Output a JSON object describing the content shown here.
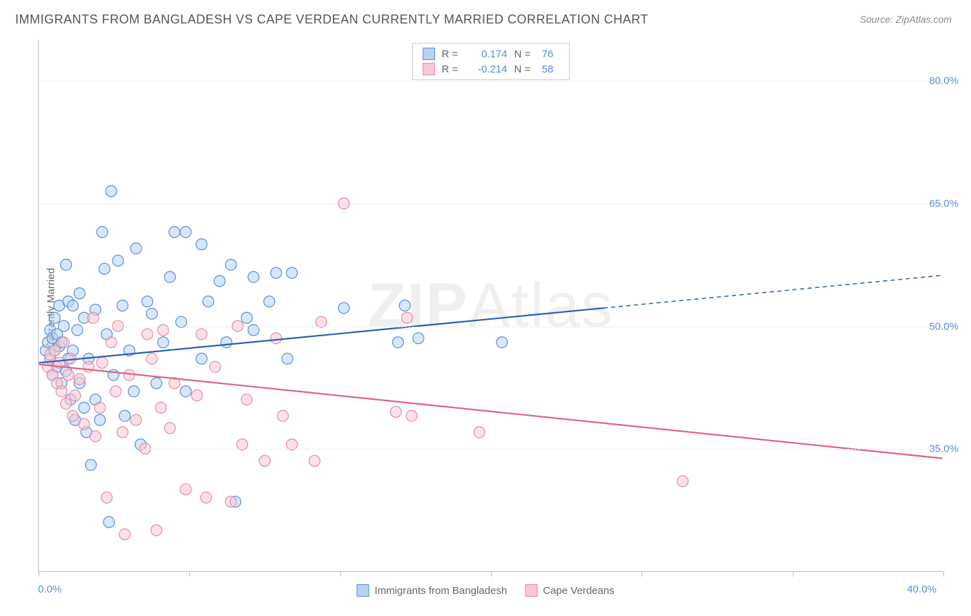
{
  "title": "IMMIGRANTS FROM BANGLADESH VS CAPE VERDEAN CURRENTLY MARRIED CORRELATION CHART",
  "source": "Source: ZipAtlas.com",
  "watermark": {
    "bold": "ZIP",
    "light": "Atlas"
  },
  "chart": {
    "type": "scatter+regression",
    "background_color": "#ffffff",
    "grid_color": "#e5e5e5",
    "axis_color": "#bbbbbb",
    "xlim": [
      0,
      40
    ],
    "ylim": [
      20,
      85
    ],
    "xtick_positions": [
      0,
      6.67,
      13.33,
      20,
      26.67,
      33.33,
      40
    ],
    "xtick_labels": {
      "left": "0.0%",
      "right": "40.0%"
    },
    "yticks": [
      35,
      50,
      65,
      80
    ],
    "ytick_labels": [
      "35.0%",
      "50.0%",
      "65.0%",
      "80.0%"
    ],
    "ylabel": "Currently Married",
    "tick_label_color": "#5b8dd6",
    "label_fontsize": 15,
    "title_fontsize": 18,
    "title_color": "#555555",
    "marker_radius": 8,
    "marker_opacity": 0.55,
    "marker_stroke_width": 1.2,
    "line_width": 2.2,
    "series": [
      {
        "name": "Immigrants from Bangladesh",
        "fill_color": "#b7d3f2",
        "stroke_color": "#5b8dd6",
        "line_color": "#2b5fb5",
        "R": "0.174",
        "N": "76",
        "regression": {
          "x1": 0,
          "y1": 45.5,
          "x2": 25,
          "y2": 52.2,
          "x2_dash": 40,
          "y2_dash": 56.2
        },
        "points": [
          [
            0.3,
            47
          ],
          [
            0.4,
            48
          ],
          [
            0.5,
            46
          ],
          [
            0.5,
            49.5
          ],
          [
            0.6,
            44
          ],
          [
            0.6,
            48.5
          ],
          [
            0.7,
            47
          ],
          [
            0.7,
            51
          ],
          [
            0.8,
            45
          ],
          [
            0.8,
            49
          ],
          [
            0.9,
            47.5
          ],
          [
            0.9,
            52.5
          ],
          [
            1.0,
            43
          ],
          [
            1.0,
            48
          ],
          [
            1.1,
            50
          ],
          [
            1.2,
            44.5
          ],
          [
            1.2,
            57.5
          ],
          [
            1.3,
            46
          ],
          [
            1.3,
            53
          ],
          [
            1.4,
            41
          ],
          [
            1.5,
            47
          ],
          [
            1.5,
            52.5
          ],
          [
            1.6,
            38.5
          ],
          [
            1.7,
            49.5
          ],
          [
            1.8,
            43
          ],
          [
            1.8,
            54
          ],
          [
            2.0,
            40
          ],
          [
            2.0,
            51
          ],
          [
            2.1,
            37
          ],
          [
            2.2,
            46
          ],
          [
            2.3,
            33
          ],
          [
            2.5,
            52
          ],
          [
            2.5,
            41
          ],
          [
            2.7,
            38.5
          ],
          [
            2.8,
            61.5
          ],
          [
            2.9,
            57
          ],
          [
            3.0,
            49
          ],
          [
            3.1,
            26
          ],
          [
            3.2,
            66.5
          ],
          [
            3.3,
            44
          ],
          [
            3.5,
            58
          ],
          [
            3.7,
            52.5
          ],
          [
            3.8,
            39
          ],
          [
            4.0,
            47
          ],
          [
            4.2,
            42
          ],
          [
            4.3,
            59.5
          ],
          [
            4.5,
            35.5
          ],
          [
            4.8,
            53
          ],
          [
            5.0,
            51.5
          ],
          [
            5.2,
            43
          ],
          [
            5.5,
            48
          ],
          [
            5.8,
            56
          ],
          [
            6.0,
            61.5
          ],
          [
            6.3,
            50.5
          ],
          [
            6.5,
            42
          ],
          [
            6.5,
            61.5
          ],
          [
            7.2,
            46
          ],
          [
            7.2,
            60
          ],
          [
            7.5,
            53
          ],
          [
            8.0,
            55.5
          ],
          [
            8.3,
            48
          ],
          [
            8.5,
            57.5
          ],
          [
            8.7,
            28.5
          ],
          [
            9.2,
            51
          ],
          [
            9.5,
            49.5
          ],
          [
            9.5,
            56
          ],
          [
            10.2,
            53
          ],
          [
            10.5,
            56.5
          ],
          [
            11.0,
            46
          ],
          [
            11.2,
            56.5
          ],
          [
            13.5,
            52.2
          ],
          [
            15.9,
            48
          ],
          [
            16.8,
            48.5
          ],
          [
            16.2,
            52.5
          ],
          [
            20.5,
            48
          ]
        ]
      },
      {
        "name": "Cape Verdeans",
        "fill_color": "#f7c9d4",
        "stroke_color": "#e48ba3",
        "line_color": "#e06088",
        "R": "-0.214",
        "N": "58",
        "regression": {
          "x1": 0,
          "y1": 45.3,
          "x2": 40,
          "y2": 33.8
        },
        "points": [
          [
            0.4,
            45
          ],
          [
            0.5,
            46.5
          ],
          [
            0.6,
            44
          ],
          [
            0.7,
            47
          ],
          [
            0.8,
            43
          ],
          [
            0.9,
            45.5
          ],
          [
            1.0,
            42
          ],
          [
            1.1,
            48
          ],
          [
            1.2,
            40.5
          ],
          [
            1.3,
            44
          ],
          [
            1.4,
            46
          ],
          [
            1.5,
            39
          ],
          [
            1.6,
            41.5
          ],
          [
            1.8,
            43.5
          ],
          [
            2.0,
            38
          ],
          [
            2.2,
            45
          ],
          [
            2.4,
            51
          ],
          [
            2.5,
            36.5
          ],
          [
            2.7,
            40
          ],
          [
            2.8,
            45.5
          ],
          [
            3.0,
            29
          ],
          [
            3.2,
            48
          ],
          [
            3.4,
            42
          ],
          [
            3.5,
            50
          ],
          [
            3.7,
            37
          ],
          [
            3.8,
            24.5
          ],
          [
            4.0,
            44
          ],
          [
            4.3,
            38.5
          ],
          [
            4.7,
            35
          ],
          [
            4.8,
            49
          ],
          [
            5.0,
            46
          ],
          [
            5.2,
            25
          ],
          [
            5.4,
            40
          ],
          [
            5.5,
            49.5
          ],
          [
            5.8,
            37.5
          ],
          [
            6.0,
            43
          ],
          [
            6.5,
            30
          ],
          [
            7.0,
            41.5
          ],
          [
            7.2,
            49
          ],
          [
            7.4,
            29
          ],
          [
            7.8,
            45
          ],
          [
            8.5,
            28.5
          ],
          [
            8.8,
            50
          ],
          [
            9.0,
            35.5
          ],
          [
            9.2,
            41
          ],
          [
            10.0,
            33.5
          ],
          [
            10.5,
            48.5
          ],
          [
            10.8,
            39
          ],
          [
            11.2,
            35.5
          ],
          [
            12.2,
            33.5
          ],
          [
            12.5,
            50.5
          ],
          [
            13.5,
            65
          ],
          [
            15.8,
            39.5
          ],
          [
            16.5,
            39
          ],
          [
            16.3,
            51
          ],
          [
            19.5,
            37
          ],
          [
            28.5,
            31
          ]
        ]
      }
    ],
    "legend_bottom": [
      {
        "label": "Immigrants from Bangladesh",
        "fill": "#b7d3f2",
        "stroke": "#5b8dd6"
      },
      {
        "label": "Cape Verdeans",
        "fill": "#f7c9d4",
        "stroke": "#e48ba3"
      }
    ]
  }
}
